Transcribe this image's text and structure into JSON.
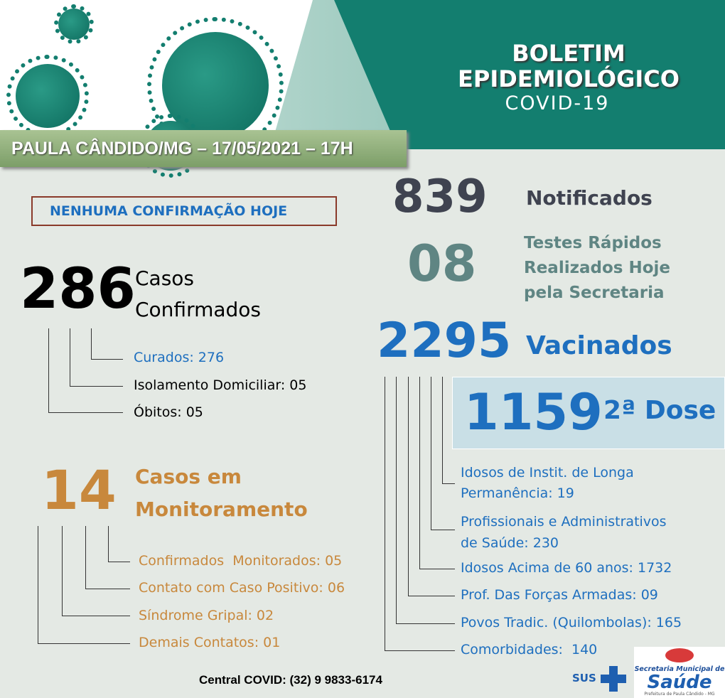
{
  "header": {
    "title_line1": "BOLETIM",
    "title_line2": "EPIDEMIOLÓGICO",
    "title_line3": "COVID-19",
    "banner": "PAULA CÂNDIDO/MG – 17/05/2021 – 17H"
  },
  "alert": "NENHUMA CONFIRMAÇÃO HOJE",
  "confirmed": {
    "value": "286",
    "label_line1": "Casos",
    "label_line2": "Confirmados",
    "items": [
      {
        "label": "Curados: 276"
      },
      {
        "label": "Isolamento Domiciliar: 05"
      },
      {
        "label": "Óbitos: 05"
      }
    ]
  },
  "monitoring": {
    "value": "14",
    "label_line1": "Casos em",
    "label_line2": "Monitoramento",
    "items": [
      {
        "label": "Confirmados  Monitorados: 05"
      },
      {
        "label": "Contato com Caso Positivo: 06"
      },
      {
        "label": "Síndrome Gripal: 02"
      },
      {
        "label": "Demais Contatos: 01"
      }
    ]
  },
  "notified": {
    "value": "839",
    "label": "Notificados"
  },
  "tests": {
    "value": "08",
    "label_line1": "Testes Rápidos",
    "label_line2": "Realizados Hoje",
    "label_line3": "pela Secretaria"
  },
  "vaccinated": {
    "value": "2295",
    "label": "Vacinados",
    "second_dose_value": "1159",
    "second_dose_label": "2ª Dose",
    "items": [
      {
        "line1": "Idosos de Instit. de Longa",
        "line2": "Permanência: 19"
      },
      {
        "line1": "Profissionais e Administrativos",
        "line2": "de Saúde: 230"
      },
      {
        "line1": "Idosos Acima de 60 anos: 1732"
      },
      {
        "line1": "Prof. Das Forças Armadas: 09"
      },
      {
        "line1": "Povos Tradic. (Quilombolas): 165"
      },
      {
        "line1": "Comorbidades:  140"
      }
    ]
  },
  "footer": {
    "contact": "Central COVID: (32) 9 9833-6174",
    "sus_logo": "SUS",
    "saude_logo_line1": "Secretaria Municipal de",
    "saude_logo_line2": "Saúde",
    "saude_logo_line3": "Prefeitura de Paula Cândido - MG"
  },
  "colors": {
    "teal": "#137e6f",
    "blue": "#1e6fbf",
    "orange": "#c8883c",
    "banner": "#8fae7a"
  }
}
